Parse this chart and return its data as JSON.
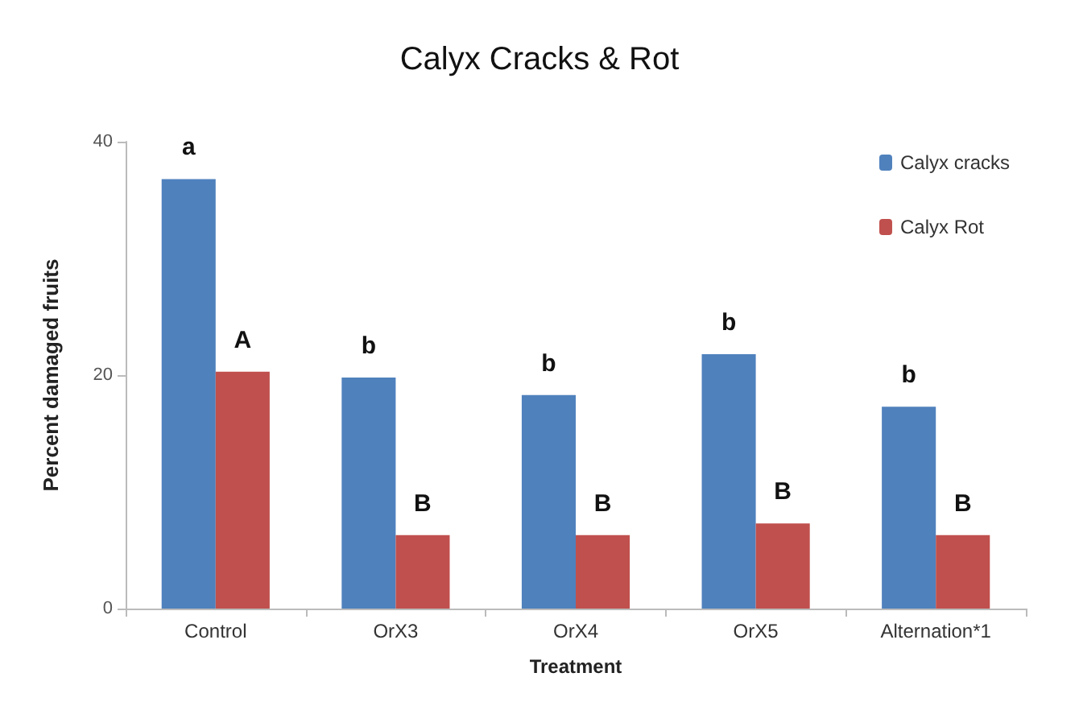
{
  "chart_data": {
    "type": "bar",
    "title": "Calyx Cracks & Rot",
    "xlabel": "Treatment",
    "ylabel": "Percent damaged fruits",
    "categories": [
      "Control",
      "OrX3",
      "OrX4",
      "OrX5",
      "Alternation*1"
    ],
    "series": [
      {
        "name": "Calyx cracks",
        "color": "#4f81bd",
        "values": [
          36.8,
          19.8,
          18.3,
          21.8,
          17.3
        ]
      },
      {
        "name": "Calyx Rot",
        "color": "#c0504d",
        "values": [
          20.3,
          6.3,
          6.3,
          7.3,
          6.3
        ]
      }
    ],
    "ylim": [
      0,
      40
    ],
    "yticks": [
      0,
      20,
      40
    ],
    "grid": false,
    "legend": "top right",
    "annotations": [
      {
        "text": "a",
        "x": "Control",
        "y": 36.8
      },
      {
        "text": "A",
        "x": "Control",
        "y": 20.3
      },
      {
        "text": "b",
        "x": "OrX3",
        "y": 19.8
      },
      {
        "text": "B",
        "x": "OrX3",
        "y": 6.3
      },
      {
        "text": "b",
        "x": "OrX4",
        "y": 18.3
      },
      {
        "text": "B",
        "x": "OrX4",
        "y": 6.3
      },
      {
        "text": "b",
        "x": "OrX5",
        "y": 21.8
      },
      {
        "text": "B",
        "x": "OrX5",
        "y": 7.3
      },
      {
        "text": "b",
        "x": "Alternation*1",
        "y": 17.3
      },
      {
        "text": "B",
        "x": "Alternation*1",
        "y": 6.3
      }
    ]
  }
}
